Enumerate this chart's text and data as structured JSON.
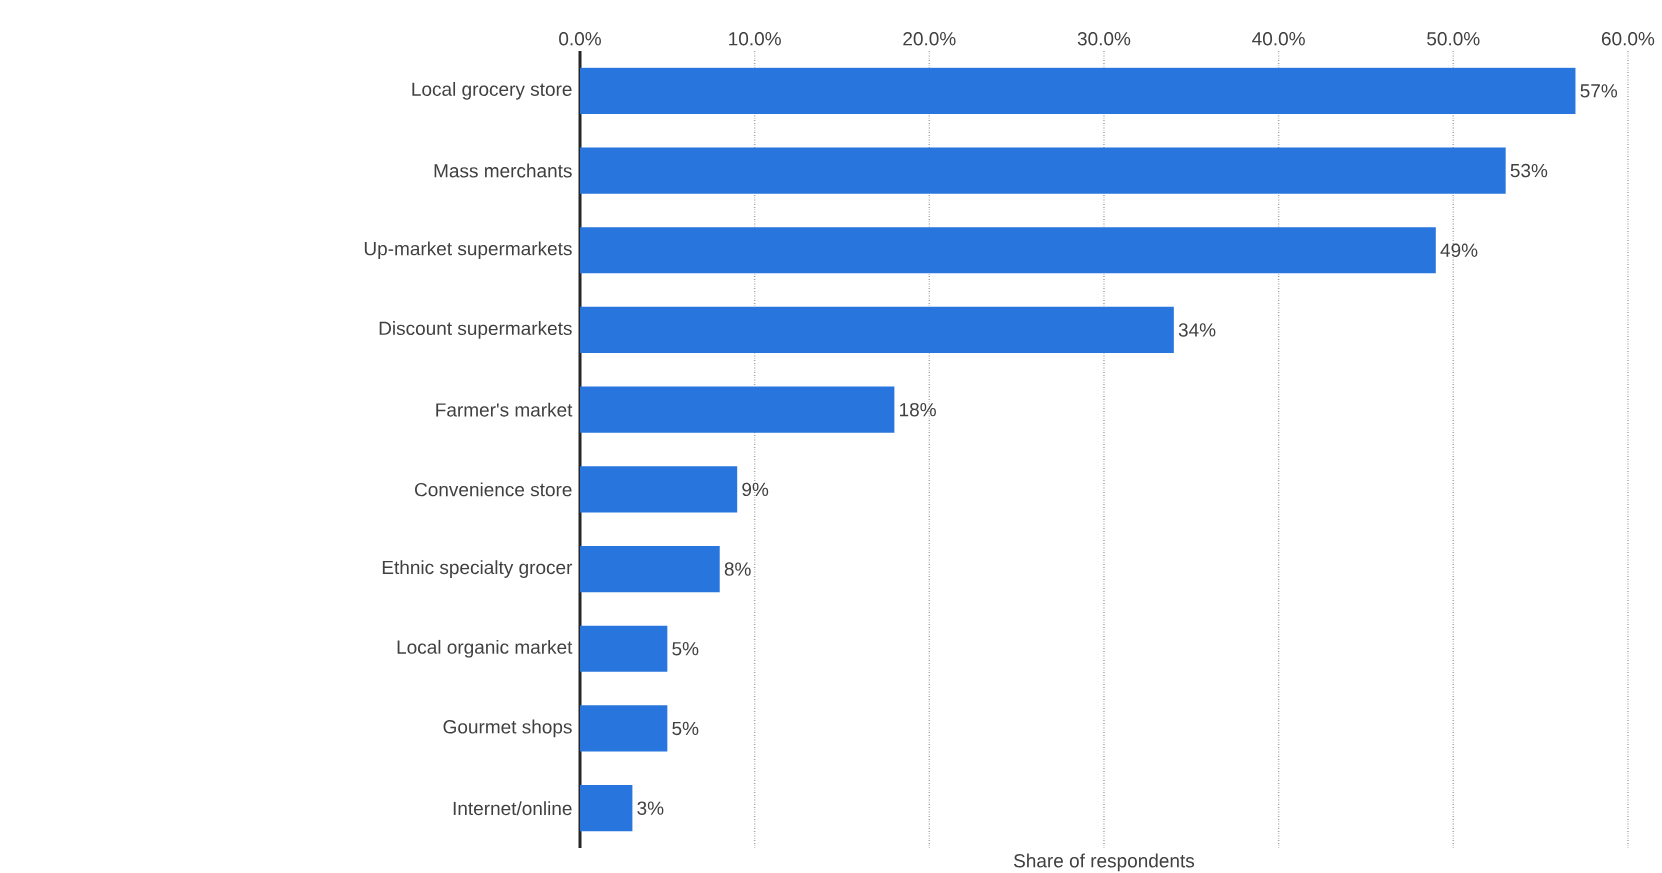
{
  "chart_data": {
    "type": "bar",
    "orientation": "horizontal",
    "xlabel": "Share of respondents",
    "categories": [
      "Local grocery store",
      "Mass merchants",
      "Up-market supermarkets",
      "Discount supermarkets",
      "Farmer's market",
      "Convenience store",
      "Ethnic specialty grocer",
      "Local organic market",
      "Gourmet shops",
      "Internet/online"
    ],
    "values": [
      57,
      53,
      49,
      34,
      18,
      9,
      8,
      5,
      5,
      3
    ],
    "value_labels": [
      "57%",
      "53%",
      "49%",
      "34%",
      "18%",
      "9%",
      "8%",
      "5%",
      "5%",
      "3%"
    ],
    "color": "#2876dd",
    "xlim": [
      0,
      60
    ],
    "xticks": [
      {
        "value": 0,
        "label": "0.0%"
      },
      {
        "value": 10,
        "label": "10.0%"
      },
      {
        "value": 20,
        "label": "20.0%"
      },
      {
        "value": 30,
        "label": "30.0%"
      },
      {
        "value": 40,
        "label": "40.0%"
      },
      {
        "value": 50,
        "label": "50.0%"
      },
      {
        "value": 60,
        "label": "60.0%"
      }
    ],
    "grid": "x"
  }
}
